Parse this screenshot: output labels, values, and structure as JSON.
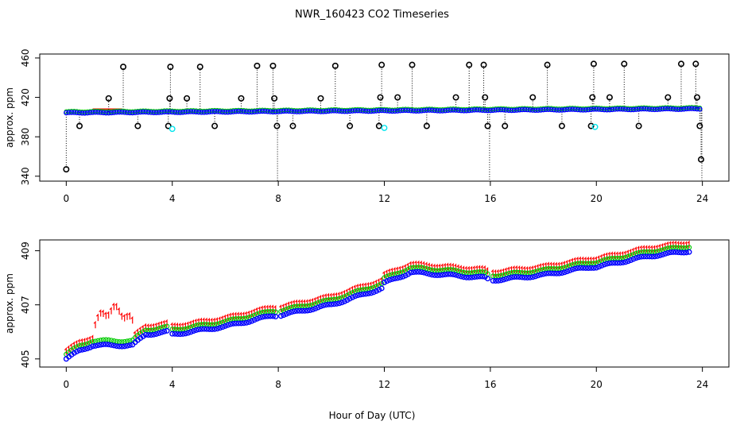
{
  "title": "NWR_160423  CO2 Timeseries",
  "xlabel": "Hour of Day (UTC)",
  "colors": {
    "black": "#000000",
    "red": "#ff0000",
    "green": "#00cc00",
    "blue": "#0000ff",
    "cyan": "#00e5ee"
  },
  "chart_data": [
    {
      "type": "scatter",
      "panel": "top",
      "title": "NWR_160423  CO2 Timeseries",
      "xlabel": "",
      "ylabel": "approx. ppm",
      "xlim": [
        -1,
        25
      ],
      "ylim": [
        335,
        464
      ],
      "xticks": [
        "0",
        "4",
        "8",
        "12",
        "16",
        "20",
        "24"
      ],
      "yticks": [
        "340",
        "380",
        "420",
        "460"
      ],
      "baseline": {
        "x": [
          0,
          24
        ],
        "y": [
          405,
          409
        ]
      },
      "spikes": [
        {
          "x": 0.0,
          "y": 347
        },
        {
          "x": 0.5,
          "y": 391
        },
        {
          "x": 1.6,
          "y": 419
        },
        {
          "x": 2.15,
          "y": 451
        },
        {
          "x": 2.7,
          "y": 391
        },
        {
          "x": 3.85,
          "y": 391
        },
        {
          "x": 3.9,
          "y": 419
        },
        {
          "x": 3.93,
          "y": 451
        },
        {
          "x": 4.55,
          "y": 419
        },
        {
          "x": 5.05,
          "y": 451
        },
        {
          "x": 5.6,
          "y": 391
        },
        {
          "x": 6.6,
          "y": 419
        },
        {
          "x": 7.2,
          "y": 452
        },
        {
          "x": 7.8,
          "y": 452
        },
        {
          "x": 7.85,
          "y": 419
        },
        {
          "x": 7.95,
          "y": 391
        },
        {
          "x": 7.97,
          "y": 335
        },
        {
          "x": 8.55,
          "y": 391
        },
        {
          "x": 9.6,
          "y": 419
        },
        {
          "x": 10.15,
          "y": 452
        },
        {
          "x": 10.7,
          "y": 391
        },
        {
          "x": 11.8,
          "y": 391
        },
        {
          "x": 11.85,
          "y": 420
        },
        {
          "x": 11.9,
          "y": 453
        },
        {
          "x": 12.5,
          "y": 420
        },
        {
          "x": 13.05,
          "y": 453
        },
        {
          "x": 13.6,
          "y": 391
        },
        {
          "x": 14.7,
          "y": 420
        },
        {
          "x": 15.2,
          "y": 453
        },
        {
          "x": 15.75,
          "y": 453
        },
        {
          "x": 15.8,
          "y": 420
        },
        {
          "x": 15.9,
          "y": 391
        },
        {
          "x": 15.97,
          "y": 335
        },
        {
          "x": 16.55,
          "y": 391
        },
        {
          "x": 17.6,
          "y": 420
        },
        {
          "x": 18.15,
          "y": 453
        },
        {
          "x": 18.7,
          "y": 391
        },
        {
          "x": 19.8,
          "y": 391
        },
        {
          "x": 19.85,
          "y": 420
        },
        {
          "x": 19.9,
          "y": 454
        },
        {
          "x": 20.5,
          "y": 420
        },
        {
          "x": 21.05,
          "y": 454
        },
        {
          "x": 21.6,
          "y": 391
        },
        {
          "x": 22.7,
          "y": 420
        },
        {
          "x": 23.2,
          "y": 454
        },
        {
          "x": 23.75,
          "y": 454
        },
        {
          "x": 23.8,
          "y": 420
        },
        {
          "x": 23.9,
          "y": 391
        },
        {
          "x": 23.95,
          "y": 357
        },
        {
          "x": 23.98,
          "y": 336
        }
      ],
      "cyan_points": [
        {
          "x": 4.0,
          "y": 388
        },
        {
          "x": 12.0,
          "y": 389
        },
        {
          "x": 19.95,
          "y": 390
        }
      ],
      "red_segments": [
        {
          "x0": 1.0,
          "x1": 2.1,
          "y": 408
        }
      ]
    },
    {
      "type": "line",
      "panel": "bottom",
      "title": "",
      "xlabel": "Hour of Day (UTC)",
      "ylabel": "approx. ppm",
      "xlim": [
        -1,
        25
      ],
      "ylim": [
        404.7,
        409.4
      ],
      "xticks": [
        "0",
        "4",
        "8",
        "12",
        "16",
        "20",
        "24"
      ],
      "yticks": [
        "405",
        "407",
        "409"
      ],
      "gaps": [
        3.85,
        7.9,
        15.9
      ],
      "keypoints_blue": [
        {
          "x": 0,
          "y": 405.0
        },
        {
          "x": 0.5,
          "y": 405.3
        },
        {
          "x": 1.0,
          "y": 405.5
        },
        {
          "x": 2.5,
          "y": 405.5
        },
        {
          "x": 3.0,
          "y": 405.9
        },
        {
          "x": 3.8,
          "y": 406.0
        },
        {
          "x": 4.0,
          "y": 405.9
        },
        {
          "x": 6.0,
          "y": 406.2
        },
        {
          "x": 7.8,
          "y": 406.6
        },
        {
          "x": 8.0,
          "y": 406.6
        },
        {
          "x": 10.0,
          "y": 407.0
        },
        {
          "x": 11.9,
          "y": 407.6
        },
        {
          "x": 12.0,
          "y": 407.8
        },
        {
          "x": 13.0,
          "y": 408.2
        },
        {
          "x": 15.8,
          "y": 408.0
        },
        {
          "x": 16.0,
          "y": 407.9
        },
        {
          "x": 18.0,
          "y": 408.1
        },
        {
          "x": 19.8,
          "y": 408.4
        },
        {
          "x": 20.0,
          "y": 408.4
        },
        {
          "x": 22.0,
          "y": 408.8
        },
        {
          "x": 23.6,
          "y": 409.0
        }
      ],
      "green_offset": 0.17,
      "red_offset": 0.27,
      "red_hump": {
        "x": [
          1.0,
          2.6
        ],
        "y": [
          406.2,
          406.8
        ]
      },
      "series": [
        {
          "name": "blue",
          "color": "#0000ff"
        },
        {
          "name": "green",
          "color": "#00cc00"
        },
        {
          "name": "red",
          "color": "#ff0000"
        }
      ]
    }
  ]
}
